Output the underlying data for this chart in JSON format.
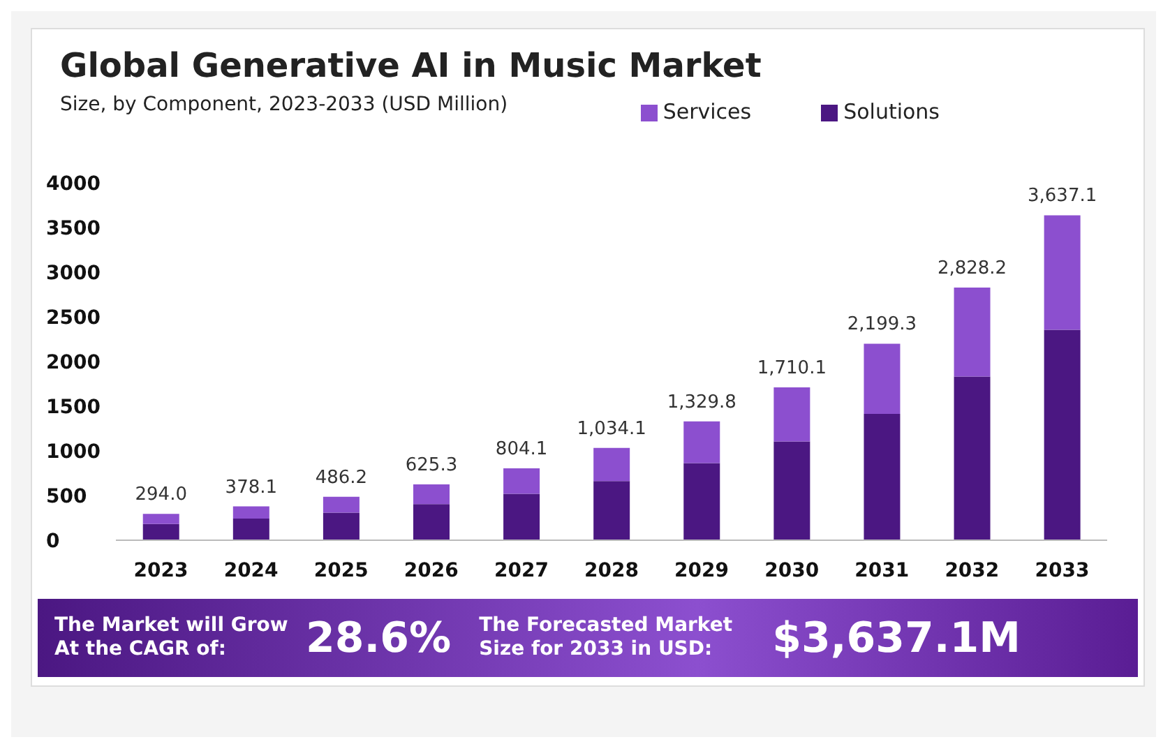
{
  "chart_data": {
    "type": "bar",
    "title": "Global Generative AI in Music Market",
    "subtitle": "Size, by Component, 2023-2033 (USD Million)",
    "categories": [
      "2023",
      "2024",
      "2025",
      "2026",
      "2027",
      "2028",
      "2029",
      "2030",
      "2031",
      "2032",
      "2033"
    ],
    "series": [
      {
        "name": "Solutions",
        "color": "#4b1782",
        "values": [
          182,
          242,
          308,
          404,
          520,
          662,
          864,
          1106,
          1415,
          1833,
          2355
        ]
      },
      {
        "name": "Services",
        "color": "#8c4fcf",
        "values": [
          112,
          136.1,
          178.2,
          221.3,
          284.1,
          372.1,
          465.8,
          604.1,
          784.3,
          995.2,
          1282.1
        ]
      }
    ],
    "stacked": true,
    "ylim": [
      0,
      4000
    ],
    "yticks": [
      0,
      500,
      1000,
      1500,
      2000,
      2500,
      3000,
      3500,
      4000
    ],
    "totals": [
      "294.0",
      "378.1",
      "486.2",
      "625.3",
      "804.1",
      "1,034.1",
      "1,329.8",
      "1,710.1",
      "2,199.3",
      "2,828.2",
      "3,637.1"
    ],
    "grid": false,
    "legend": "top right",
    "annotations": [
      "The Market will Grow At the CAGR of:",
      "28.6%",
      "The Forecasted Market Size for 2033 in USD:",
      "$3,637.1M"
    ]
  }
}
